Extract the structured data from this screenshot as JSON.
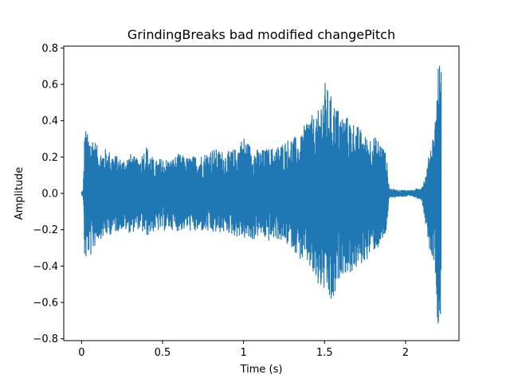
{
  "chart_data": {
    "type": "line",
    "title": "GrindingBreaks bad modified changePitch",
    "xlabel": "Time (s)",
    "ylabel": "Amplitude",
    "xlim": [
      -0.11,
      2.33
    ],
    "ylim": [
      -0.81,
      0.81
    ],
    "xticks": [
      0,
      0.5,
      1,
      1.5,
      2
    ],
    "xtick_labels": [
      "0",
      "0.5",
      "1",
      "1.5",
      "2"
    ],
    "yticks": [
      -0.8,
      -0.6,
      -0.4,
      -0.2,
      0.0,
      0.2,
      0.4,
      0.6,
      0.8
    ],
    "ytick_labels": [
      "−0.8",
      "−0.6",
      "−0.4",
      "−0.2",
      "0.0",
      "0.2",
      "0.4",
      "0.6",
      "0.8"
    ],
    "grid": false,
    "series": [
      {
        "color": "#1f77b4",
        "envelope": {
          "t": [
            0.0,
            0.01,
            0.02,
            0.04,
            0.06,
            0.08,
            0.1,
            0.12,
            0.15,
            0.2,
            0.25,
            0.3,
            0.35,
            0.4,
            0.45,
            0.5,
            0.55,
            0.6,
            0.65,
            0.7,
            0.75,
            0.8,
            0.85,
            0.9,
            0.95,
            1.0,
            1.05,
            1.1,
            1.15,
            1.2,
            1.25,
            1.3,
            1.35,
            1.4,
            1.45,
            1.5,
            1.55,
            1.6,
            1.65,
            1.7,
            1.75,
            1.8,
            1.85,
            1.88,
            1.9,
            1.95,
            2.0,
            2.05,
            2.1,
            2.13,
            2.15,
            2.18,
            2.2,
            2.22
          ],
          "max": [
            0.01,
            0.02,
            0.38,
            0.32,
            0.33,
            0.31,
            0.25,
            0.24,
            0.25,
            0.22,
            0.19,
            0.22,
            0.19,
            0.27,
            0.18,
            0.2,
            0.19,
            0.22,
            0.2,
            0.21,
            0.22,
            0.25,
            0.24,
            0.23,
            0.25,
            0.32,
            0.26,
            0.24,
            0.25,
            0.26,
            0.29,
            0.32,
            0.3,
            0.45,
            0.41,
            0.62,
            0.52,
            0.45,
            0.42,
            0.38,
            0.32,
            0.32,
            0.29,
            0.22,
            0.03,
            0.02,
            0.02,
            0.02,
            0.04,
            0.12,
            0.26,
            0.37,
            0.73,
            0.72
          ],
          "min": [
            -0.01,
            -0.02,
            -0.4,
            -0.34,
            -0.35,
            -0.3,
            -0.26,
            -0.25,
            -0.24,
            -0.22,
            -0.2,
            -0.22,
            -0.2,
            -0.24,
            -0.21,
            -0.21,
            -0.2,
            -0.21,
            -0.2,
            -0.22,
            -0.21,
            -0.23,
            -0.22,
            -0.22,
            -0.24,
            -0.25,
            -0.27,
            -0.23,
            -0.27,
            -0.25,
            -0.28,
            -0.3,
            -0.37,
            -0.4,
            -0.52,
            -0.55,
            -0.65,
            -0.44,
            -0.45,
            -0.42,
            -0.38,
            -0.32,
            -0.3,
            -0.22,
            -0.03,
            -0.02,
            -0.02,
            -0.02,
            -0.04,
            -0.2,
            -0.32,
            -0.38,
            -0.74,
            -0.72
          ]
        }
      }
    ]
  }
}
